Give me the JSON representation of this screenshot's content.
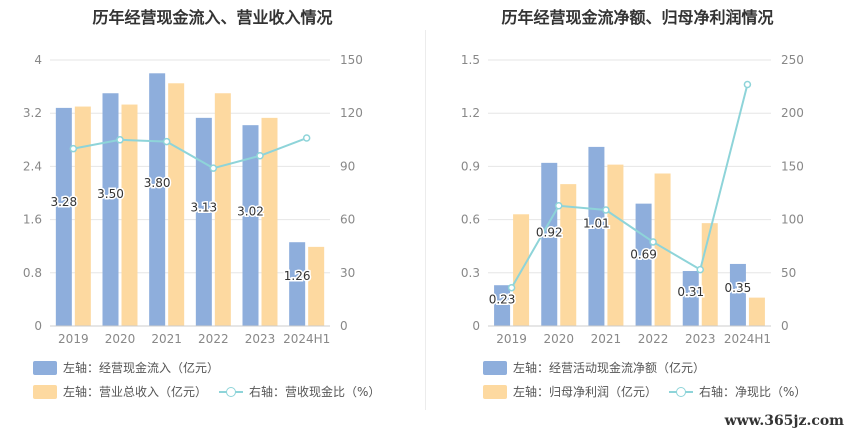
{
  "colors": {
    "bar_left": "#8eaedc",
    "bar_right": "#fdd9a0",
    "line": "#8ed4d9",
    "grid": "#e6e6e6",
    "axis_text": "#888888"
  },
  "watermark": "www.365jz.com",
  "chart_data": [
    {
      "type": "bar",
      "title": "历年经营现金流入、营业收入情况",
      "categories": [
        "2019",
        "2020",
        "2021",
        "2022",
        "2023",
        "2024H1"
      ],
      "y_left": {
        "ticks": [
          "0",
          "0.8",
          "1.6",
          "2.4",
          "3.2",
          "4"
        ],
        "lim": [
          0,
          4
        ]
      },
      "y_right": {
        "ticks": [
          "0",
          "30",
          "60",
          "90",
          "120",
          "150"
        ],
        "lim": [
          0,
          150
        ]
      },
      "series": [
        {
          "name": "左轴：经营现金流入（亿元）",
          "kind": "bar",
          "axis": "left",
          "values": [
            3.28,
            3.5,
            3.8,
            3.13,
            3.02,
            1.26
          ],
          "labels": [
            "3.28",
            "3.50",
            "3.80",
            "3.13",
            "3.02",
            "1.26"
          ],
          "color": "#8eaedc"
        },
        {
          "name": "左轴：营业总收入（亿元）",
          "kind": "bar",
          "axis": "left",
          "values": [
            3.3,
            3.33,
            3.65,
            3.5,
            3.13,
            1.19
          ],
          "color": "#fdd9a0"
        },
        {
          "name": "右轴：营收现金比（%）",
          "kind": "line",
          "axis": "right",
          "values": [
            100,
            105,
            104,
            89,
            96,
            106
          ],
          "color": "#8ed4d9"
        }
      ]
    },
    {
      "type": "bar",
      "title": "历年经营现金流净额、归母净利润情况",
      "categories": [
        "2019",
        "2020",
        "2021",
        "2022",
        "2023",
        "2024H1"
      ],
      "y_left": {
        "ticks": [
          "0",
          "0.3",
          "0.6",
          "0.9",
          "1.2",
          "1.5"
        ],
        "lim": [
          0,
          1.5
        ]
      },
      "y_right": {
        "ticks": [
          "0",
          "50",
          "100",
          "150",
          "200",
          "250"
        ],
        "lim": [
          0,
          250
        ]
      },
      "series": [
        {
          "name": "左轴：经营活动现金流净额（亿元）",
          "kind": "bar",
          "axis": "left",
          "values": [
            0.23,
            0.92,
            1.01,
            0.69,
            0.31,
            0.35
          ],
          "labels": [
            "0.23",
            "0.92",
            "1.01",
            "0.69",
            "0.31",
            "0.35"
          ],
          "color": "#8eaedc"
        },
        {
          "name": "左轴：归母净利润（亿元）",
          "kind": "bar",
          "axis": "left",
          "values": [
            0.63,
            0.8,
            0.91,
            0.86,
            0.58,
            0.16
          ],
          "color": "#fdd9a0"
        },
        {
          "name": "右轴：净现比（%）",
          "kind": "line",
          "axis": "right",
          "values": [
            36,
            113,
            109,
            79,
            53,
            227
          ],
          "color": "#8ed4d9"
        }
      ]
    }
  ]
}
